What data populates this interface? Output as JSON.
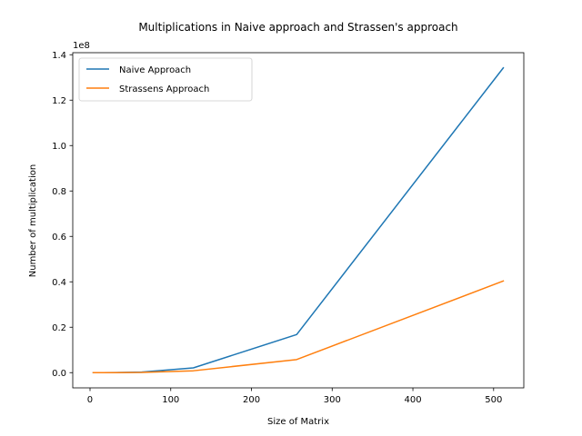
{
  "chart_data": {
    "type": "line",
    "title": "Multiplications in Naive approach and Strassen's approach",
    "xlabel": "Size of Matrix",
    "ylabel": "Number of multiplication",
    "y_offset_label": "1e8",
    "xlim": [
      -21.4,
      537.4
    ],
    "ylim": [
      -0.067,
      1.409
    ],
    "y_multiplier": 100000000,
    "x_ticks": [
      0,
      100,
      200,
      300,
      400,
      500
    ],
    "x_tick_labels": [
      "0",
      "100",
      "200",
      "300",
      "400",
      "500"
    ],
    "y_ticks": [
      0.0,
      0.2,
      0.4,
      0.6,
      0.8,
      1.0,
      1.2,
      1.4
    ],
    "y_tick_labels": [
      "0.0",
      "0.2",
      "0.4",
      "0.6",
      "0.8",
      "1.0",
      "1.2",
      "1.4"
    ],
    "grid": false,
    "legend_position": "top-left",
    "x": [
      4,
      8,
      16,
      32,
      64,
      128,
      256,
      512
    ],
    "series": [
      {
        "name": "Naive Approach",
        "color": "#1f77b4",
        "values": [
          64,
          512,
          4096,
          32768,
          262144,
          2097152,
          16777216,
          134217728
        ]
      },
      {
        "name": "Strassens Approach",
        "color": "#ff7f0e",
        "values": [
          49,
          343,
          2401,
          16807,
          117649,
          823543,
          5764801,
          40353607
        ]
      }
    ]
  }
}
